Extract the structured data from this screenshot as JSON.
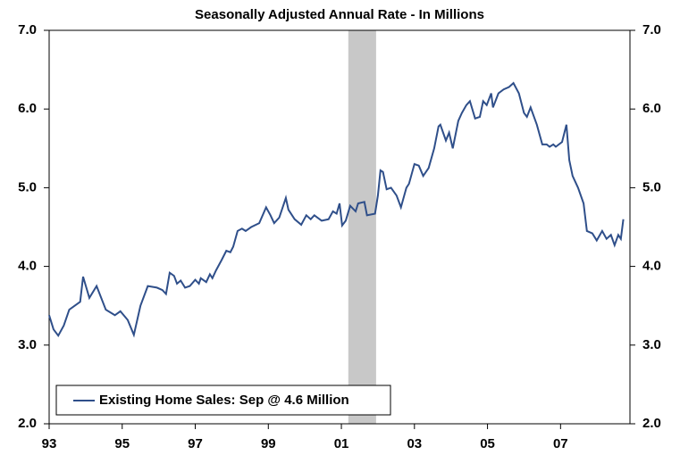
{
  "chart_data": {
    "type": "line",
    "subtitle": "Seasonally Adjusted Annual Rate - In Millions",
    "x": [
      1993.0,
      1993.12,
      1993.25,
      1993.4,
      1993.55,
      1993.7,
      1993.85,
      1993.93,
      1994.1,
      1994.3,
      1994.55,
      1994.8,
      1994.95,
      1995.15,
      1995.32,
      1995.5,
      1995.7,
      1995.95,
      1996.1,
      1996.2,
      1996.3,
      1996.42,
      1996.5,
      1996.6,
      1996.72,
      1996.85,
      1997.0,
      1997.1,
      1997.15,
      1997.3,
      1997.4,
      1997.47,
      1997.57,
      1997.72,
      1997.85,
      1997.96,
      1998.04,
      1998.16,
      1998.28,
      1998.38,
      1998.53,
      1998.75,
      1998.94,
      1999.06,
      1999.16,
      1999.3,
      1999.48,
      1999.55,
      1999.72,
      1999.9,
      2000.04,
      2000.16,
      2000.26,
      2000.46,
      2000.65,
      2000.77,
      2000.87,
      2000.95,
      2001.02,
      2001.12,
      2001.24,
      2001.39,
      2001.46,
      2001.63,
      2001.7,
      2001.92,
      2002.0,
      2002.07,
      2002.14,
      2002.24,
      2002.36,
      2002.51,
      2002.63,
      2002.78,
      2002.85,
      2003.0,
      2003.12,
      2003.24,
      2003.39,
      2003.54,
      2003.66,
      2003.71,
      2003.86,
      2003.95,
      2004.05,
      2004.2,
      2004.3,
      2004.42,
      2004.52,
      2004.66,
      2004.79,
      2004.88,
      2004.98,
      2005.1,
      2005.15,
      2005.3,
      2005.44,
      2005.59,
      2005.71,
      2005.86,
      2006.0,
      2006.08,
      2006.18,
      2006.35,
      2006.5,
      2006.62,
      2006.7,
      2006.8,
      2006.87,
      2007.04,
      2007.16,
      2007.24,
      2007.33,
      2007.48,
      2007.63,
      2007.72,
      2007.87,
      2007.99,
      2008.14,
      2008.26,
      2008.38,
      2008.48,
      2008.58,
      2008.65,
      2008.72
    ],
    "series": [
      {
        "name": "Existing Home Sales: Sep @ 4.6 Million",
        "color": "#2f4f8a",
        "values": [
          3.38,
          3.2,
          3.12,
          3.25,
          3.45,
          3.5,
          3.55,
          3.87,
          3.6,
          3.75,
          3.45,
          3.38,
          3.43,
          3.32,
          3.13,
          3.5,
          3.75,
          3.73,
          3.7,
          3.65,
          3.92,
          3.88,
          3.78,
          3.82,
          3.73,
          3.75,
          3.83,
          3.78,
          3.85,
          3.8,
          3.9,
          3.85,
          3.95,
          4.08,
          4.2,
          4.18,
          4.25,
          4.45,
          4.48,
          4.45,
          4.5,
          4.55,
          4.75,
          4.65,
          4.55,
          4.62,
          4.87,
          4.72,
          4.6,
          4.53,
          4.65,
          4.6,
          4.65,
          4.58,
          4.6,
          4.7,
          4.67,
          4.8,
          4.52,
          4.58,
          4.77,
          4.7,
          4.8,
          4.82,
          4.65,
          4.67,
          4.9,
          5.22,
          5.2,
          4.98,
          5.0,
          4.9,
          4.75,
          5.0,
          5.05,
          5.3,
          5.28,
          5.15,
          5.25,
          5.5,
          5.78,
          5.8,
          5.6,
          5.7,
          5.5,
          5.85,
          5.95,
          6.05,
          6.1,
          5.88,
          5.9,
          6.1,
          6.05,
          6.2,
          6.02,
          6.2,
          6.25,
          6.28,
          6.33,
          6.2,
          5.95,
          5.9,
          6.02,
          5.8,
          5.55,
          5.55,
          5.52,
          5.55,
          5.52,
          5.58,
          5.8,
          5.35,
          5.15,
          5.0,
          4.8,
          4.45,
          4.42,
          4.33,
          4.45,
          4.35,
          4.4,
          4.27,
          4.4,
          4.35,
          4.6
        ]
      }
    ],
    "recession": [
      2001.19,
      2001.95
    ],
    "recession_color": "#c8c8c8",
    "xlim": [
      1993,
      2008.9
    ],
    "xticks": [
      {
        "value": 1993,
        "label": "93"
      },
      {
        "value": 1995,
        "label": "95"
      },
      {
        "value": 1997,
        "label": "97"
      },
      {
        "value": 1999,
        "label": "99"
      },
      {
        "value": 2001,
        "label": "01"
      },
      {
        "value": 2003,
        "label": "03"
      },
      {
        "value": 2005,
        "label": "05"
      },
      {
        "value": 2007,
        "label": "07"
      }
    ],
    "ylim": [
      2,
      7
    ],
    "yticks": [
      {
        "value": 2,
        "label": "2.0"
      },
      {
        "value": 3,
        "label": "3.0"
      },
      {
        "value": 4,
        "label": "4.0"
      },
      {
        "value": 5,
        "label": "5.0"
      },
      {
        "value": 6,
        "label": "6.0"
      },
      {
        "value": 7,
        "label": "7.0"
      }
    ],
    "legend": "lower left"
  }
}
